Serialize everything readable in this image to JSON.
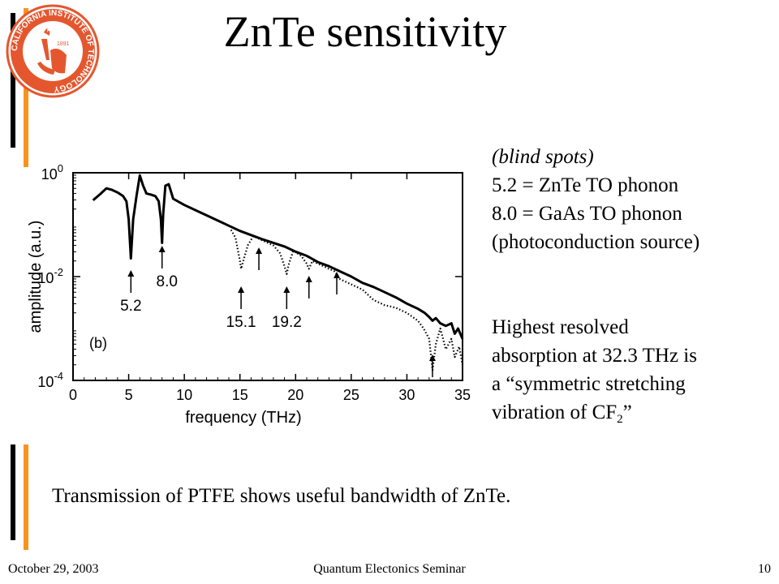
{
  "slide": {
    "title": "ZnTe sensitivity",
    "notes": {
      "heading": "(blind spots)",
      "lines": [
        "5.2 = ZnTe TO phonon",
        "8.0 = GaAs TO phonon",
        "(photoconduction source)"
      ],
      "highest": [
        "Highest resolved",
        "absorption at 32.3 THz is",
        "a “symmetric stretching"
      ],
      "vib_prefix": "vibration of CF",
      "vib_sub": "2",
      "vib_suffix": "”"
    },
    "caption": "Transmission of PTFE shows useful bandwidth of ZnTe.",
    "footer": {
      "date": "October 29, 2003",
      "center": "Quantum Electonics Seminar",
      "page": "10"
    },
    "colors": {
      "orange": "#f7941d",
      "black": "#000000",
      "logo_red": "#e4572e"
    },
    "logo": {
      "ring_text": "CALIFORNIA INSTITUTE OF TECHNOLOGY",
      "year": "1891"
    }
  },
  "chart_data": {
    "type": "line",
    "xlabel": "frequency (THz)",
    "ylabel": "amplitude (a.u.)",
    "panel_label": "(b)",
    "xlim": [
      0,
      35
    ],
    "ylim_log10": [
      -4,
      0
    ],
    "x_ticks": [
      0,
      5,
      10,
      15,
      20,
      25,
      30,
      35
    ],
    "y_ticks": [
      {
        "exp": 0,
        "base": "10",
        "sup": "0"
      },
      {
        "exp": -2,
        "base": "10",
        "sup": "-2"
      },
      {
        "exp": -4,
        "base": "10",
        "sup": "-4"
      }
    ],
    "series": [
      {
        "style": "solid",
        "x": [
          1.8,
          2.5,
          3.0,
          3.5,
          4.0,
          4.5,
          4.8,
          5.0,
          5.2,
          5.4,
          5.7,
          6.0,
          6.3,
          6.6,
          7.0,
          7.4,
          7.7,
          7.9,
          8.0,
          8.1,
          8.3,
          8.6,
          9.0,
          10.0,
          11.0,
          12.0,
          13.0,
          14.0,
          15.0,
          16.0,
          17.0,
          18.0,
          19.0,
          20.0,
          21.0,
          22.0,
          23.0,
          24.0,
          25.0,
          26.0,
          27.0,
          28.0,
          29.0,
          30.0,
          31.0,
          31.6,
          32.0,
          32.3,
          32.6,
          33.0,
          33.5,
          34.0,
          34.3,
          34.6,
          35.0
        ],
        "log10y": [
          -0.53,
          -0.4,
          -0.3,
          -0.33,
          -0.38,
          -0.45,
          -0.55,
          -0.9,
          -1.65,
          -0.9,
          -0.45,
          -0.05,
          -0.25,
          -0.4,
          -0.42,
          -0.45,
          -0.55,
          -0.9,
          -1.35,
          -0.8,
          -0.25,
          -0.22,
          -0.5,
          -0.62,
          -0.72,
          -0.82,
          -0.92,
          -1.02,
          -1.12,
          -1.2,
          -1.28,
          -1.35,
          -1.42,
          -1.52,
          -1.6,
          -1.72,
          -1.8,
          -1.9,
          -2.0,
          -2.12,
          -2.2,
          -2.3,
          -2.4,
          -2.52,
          -2.62,
          -2.7,
          -2.78,
          -2.85,
          -2.8,
          -2.9,
          -2.95,
          -2.9,
          -3.1,
          -3.0,
          -3.2
        ]
      },
      {
        "style": "dotted",
        "x": [
          14.2,
          14.6,
          15.0,
          15.1,
          15.3,
          15.7,
          16.2,
          17.0,
          18.0,
          18.6,
          19.0,
          19.2,
          19.4,
          19.8,
          20.5,
          21.0,
          21.2,
          21.5,
          22.5,
          23.5,
          24.0,
          25.0,
          26.0,
          27.0,
          28.0,
          29.0,
          30.0,
          31.0,
          31.5,
          32.0,
          32.3,
          32.6,
          33.0,
          33.5,
          34.0,
          34.3,
          34.7,
          35.0
        ],
        "log10y": [
          -1.1,
          -1.25,
          -1.7,
          -1.85,
          -1.7,
          -1.4,
          -1.22,
          -1.3,
          -1.4,
          -1.55,
          -1.8,
          -1.95,
          -1.75,
          -1.5,
          -1.6,
          -1.75,
          -1.85,
          -1.7,
          -1.8,
          -1.9,
          -2.05,
          -2.15,
          -2.25,
          -2.45,
          -2.55,
          -2.6,
          -2.7,
          -2.85,
          -3.0,
          -3.2,
          -3.8,
          -3.3,
          -3.0,
          -3.4,
          -3.2,
          -3.55,
          -3.35,
          -3.7
        ]
      }
    ],
    "annotations": [
      {
        "label": "5.2",
        "x": 5.2
      },
      {
        "label": "8.0",
        "x": 8.0
      },
      {
        "label": "15.1",
        "x": 15.1
      },
      {
        "label": "19.2",
        "x": 19.2
      },
      {
        "label": "",
        "x": 16.7
      },
      {
        "label": "",
        "x": 21.2
      },
      {
        "label": "",
        "x": 23.7
      },
      {
        "label": "",
        "x": 32.3
      }
    ]
  }
}
